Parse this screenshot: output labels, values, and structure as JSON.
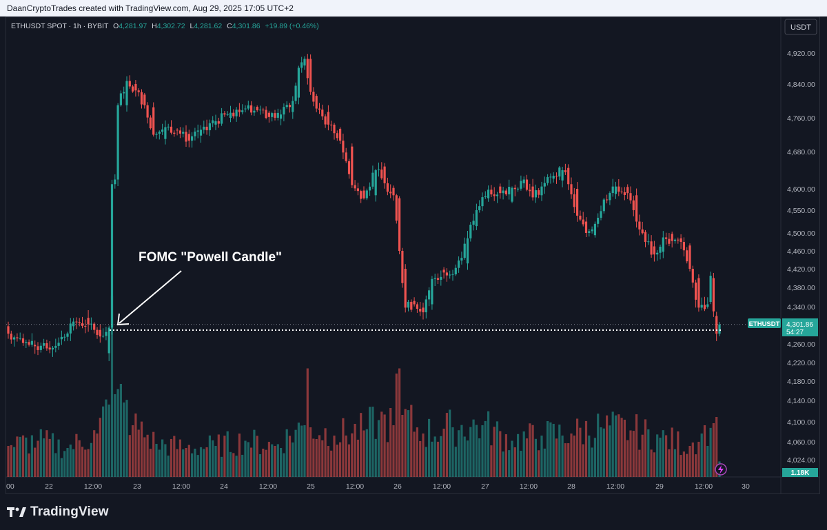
{
  "header": {
    "attribution": "DaanCryptoTrades created with TradingView.com, Aug 29, 2025 17:05 UTC+2"
  },
  "legend": {
    "symbol": "ETHUSDT SPOT · 1h · BYBIT",
    "o_label": "O",
    "o_value": "4,281.97",
    "h_label": "H",
    "h_value": "4,302.72",
    "l_label": "L",
    "l_value": "4,281.62",
    "c_label": "C",
    "c_value": "4,301.86",
    "change": "+19.89 (+0.46%)"
  },
  "currency_button": "USDT",
  "annotation": {
    "text": "FOMC \"Powell Candle\""
  },
  "price_label": {
    "symbol": "ETHUSDT",
    "price": "4,301.86",
    "countdown": "54:27"
  },
  "volume_label": "1.18K",
  "logo": {
    "text": "TradingView"
  },
  "colors": {
    "up": "#26a69a",
    "down": "#ef5350",
    "background": "#131722",
    "text": "#b2b5be"
  },
  "chart_data": {
    "type": "candlestick",
    "symbol": "ETHUSDT SPOT",
    "interval": "1h",
    "exchange": "BYBIT",
    "y_ticks": [
      4920,
      4840,
      4760,
      4680,
      4600,
      4550,
      4500,
      4460,
      4420,
      4380,
      4340,
      4260,
      4220,
      4180,
      4140,
      4100,
      4060,
      4024
    ],
    "y_tick_labels": [
      "4,920.00",
      "4,840.00",
      "4,760.00",
      "4,680.00",
      "4,600.00",
      "4,550.00",
      "4,500.00",
      "4,460.00",
      "4,420.00",
      "4,380.00",
      "4,340.00",
      "4,260.00",
      "4,220.00",
      "4,180.00",
      "4,140.00",
      "4,100.00",
      "4,060.00",
      "4,024.00"
    ],
    "x_tick_labels": [
      "00",
      "22",
      "12:00",
      "23",
      "12:00",
      "24",
      "12:00",
      "25",
      "12:00",
      "26",
      "12:00",
      "27",
      "12:00",
      "28",
      "12:00",
      "29",
      "12:00",
      "30"
    ],
    "last_price": 4301.86,
    "ohlc_anchors": [
      [
        0,
        4298,
        4282
      ],
      [
        5,
        4272,
        4262
      ],
      [
        9,
        4258,
        4255
      ],
      [
        14,
        4252,
        4248
      ],
      [
        18,
        4270,
        4275
      ],
      [
        22,
        4298,
        4308
      ],
      [
        27,
        4316,
        4302
      ],
      [
        31,
        4290,
        4276
      ],
      [
        34,
        4240,
        4295
      ],
      [
        35,
        4295,
        4610
      ],
      [
        36,
        4610,
        4620
      ],
      [
        37,
        4620,
        4790
      ],
      [
        40,
        4790,
        4848
      ],
      [
        43,
        4840,
        4825
      ],
      [
        46,
        4815,
        4790
      ],
      [
        49,
        4785,
        4720
      ],
      [
        53,
        4710,
        4738
      ],
      [
        57,
        4732,
        4730
      ],
      [
        61,
        4722,
        4706
      ],
      [
        65,
        4718,
        4732
      ],
      [
        70,
        4744,
        4752
      ],
      [
        75,
        4760,
        4772
      ],
      [
        80,
        4782,
        4782
      ],
      [
        84,
        4786,
        4778
      ],
      [
        88,
        4772,
        4762
      ],
      [
        92,
        4758,
        4768
      ],
      [
        96,
        4774,
        4800
      ],
      [
        98,
        4808,
        4882
      ],
      [
        100,
        4888,
        4905
      ],
      [
        102,
        4905,
        4822
      ],
      [
        104,
        4812,
        4782
      ],
      [
        108,
        4774,
        4744
      ],
      [
        112,
        4734,
        4706
      ],
      [
        116,
        4692,
        4608
      ],
      [
        120,
        4596,
        4578
      ],
      [
        124,
        4585,
        4640
      ],
      [
        127,
        4648,
        4612
      ],
      [
        130,
        4602,
        4585
      ],
      [
        132,
        4578,
        4460
      ],
      [
        134,
        4420,
        4338
      ],
      [
        137,
        4352,
        4345
      ],
      [
        140,
        4338,
        4328
      ],
      [
        143,
        4345,
        4398
      ],
      [
        147,
        4418,
        4412
      ],
      [
        151,
        4408,
        4422
      ],
      [
        155,
        4432,
        4488
      ],
      [
        158,
        4515,
        4550
      ],
      [
        162,
        4578,
        4598
      ],
      [
        166,
        4605,
        4590
      ],
      [
        170,
        4570,
        4602
      ],
      [
        174,
        4612,
        4620
      ],
      [
        177,
        4605,
        4580
      ],
      [
        180,
        4585,
        4605
      ],
      [
        184,
        4622,
        4628
      ],
      [
        187,
        4618,
        4640
      ],
      [
        189,
        4645,
        4610
      ],
      [
        192,
        4600,
        4538
      ],
      [
        195,
        4525,
        4500
      ],
      [
        198,
        4495,
        4520
      ],
      [
        201,
        4548,
        4575
      ],
      [
        205,
        4588,
        4605
      ],
      [
        209,
        4604,
        4590
      ],
      [
        212,
        4585,
        4525
      ],
      [
        215,
        4502,
        4480
      ],
      [
        218,
        4470,
        4452
      ],
      [
        221,
        4458,
        4490
      ],
      [
        224,
        4498,
        4482
      ],
      [
        227,
        4488,
        4480
      ],
      [
        230,
        4472,
        4420
      ],
      [
        233,
        4400,
        4338
      ],
      [
        236,
        4340,
        4345
      ],
      [
        237,
        4350,
        4405
      ],
      [
        238,
        4400,
        4330
      ],
      [
        239,
        4320,
        4282
      ],
      [
        240,
        4282,
        4301.86
      ]
    ],
    "volume_anchors": [
      [
        0,
        300
      ],
      [
        10,
        350
      ],
      [
        20,
        280
      ],
      [
        30,
        420
      ],
      [
        34,
        700
      ],
      [
        35,
        1750
      ],
      [
        36,
        800
      ],
      [
        37,
        850
      ],
      [
        38,
        900
      ],
      [
        39,
        720
      ],
      [
        42,
        500
      ],
      [
        50,
        320
      ],
      [
        60,
        280
      ],
      [
        70,
        300
      ],
      [
        80,
        350
      ],
      [
        90,
        300
      ],
      [
        100,
        500
      ],
      [
        101,
        1050
      ],
      [
        102,
        480
      ],
      [
        110,
        400
      ],
      [
        120,
        450
      ],
      [
        125,
        550
      ],
      [
        130,
        500
      ],
      [
        131,
        1000
      ],
      [
        132,
        1050
      ],
      [
        133,
        600
      ],
      [
        140,
        420
      ],
      [
        150,
        480
      ],
      [
        160,
        500
      ],
      [
        170,
        350
      ],
      [
        180,
        400
      ],
      [
        190,
        420
      ],
      [
        200,
        480
      ],
      [
        210,
        450
      ],
      [
        220,
        380
      ],
      [
        230,
        300
      ],
      [
        234,
        420
      ],
      [
        235,
        500
      ],
      [
        236,
        300
      ],
      [
        238,
        520
      ],
      [
        239,
        580
      ],
      [
        240,
        150
      ]
    ],
    "volume_cap": 1200
  }
}
